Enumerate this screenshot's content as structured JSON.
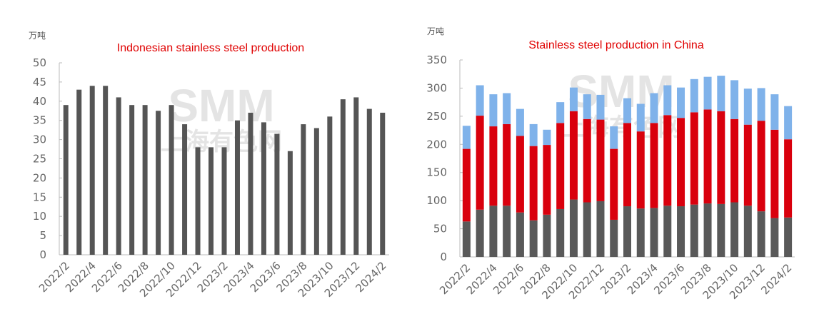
{
  "chart_data": [
    {
      "type": "bar",
      "title": "Indonesian stainless steel production",
      "ylabel": "万吨",
      "ylim": [
        0,
        50
      ],
      "yticks": [
        0,
        5,
        10,
        15,
        20,
        25,
        30,
        35,
        40,
        45,
        50
      ],
      "categories": [
        "2022/2",
        "2022/3",
        "2022/4",
        "2022/5",
        "2022/6",
        "2022/7",
        "2022/8",
        "2022/9",
        "2022/10",
        "2022/11",
        "2022/12",
        "2023/1",
        "2023/2",
        "2023/3",
        "2023/4",
        "2023/5",
        "2023/6",
        "2023/7",
        "2023/8",
        "2023/9",
        "2023/10",
        "2023/11",
        "2023/12",
        "2024/1",
        "2024/2"
      ],
      "xtick_labels": [
        "2022/2",
        "2022/4",
        "2022/6",
        "2022/8",
        "2022/10",
        "2022/12",
        "2023/2",
        "2023/4",
        "2023/6",
        "2023/8",
        "2023/10",
        "2023/12",
        "2024/2"
      ],
      "values": [
        39,
        43,
        44,
        44,
        41,
        39,
        39,
        37.5,
        39,
        34,
        28,
        28,
        28,
        35,
        37,
        34.5,
        31.5,
        27,
        34,
        33,
        36,
        40.5,
        41,
        38,
        37
      ],
      "color": "#555555",
      "grid": false
    },
    {
      "type": "bar",
      "stacked": true,
      "title": "Stainless steel production in China",
      "ylabel": "万吨",
      "ylim": [
        0,
        350
      ],
      "yticks": [
        0,
        50,
        100,
        150,
        200,
        250,
        300,
        350
      ],
      "categories": [
        "2022/2",
        "2022/3",
        "2022/4",
        "2022/5",
        "2022/6",
        "2022/7",
        "2022/8",
        "2022/9",
        "2022/10",
        "2022/11",
        "2022/12",
        "2023/1",
        "2023/2",
        "2023/3",
        "2023/4",
        "2023/5",
        "2023/6",
        "2023/7",
        "2023/8",
        "2023/9",
        "2023/10",
        "2023/11",
        "2023/12",
        "2024/1",
        "2024/2"
      ],
      "xtick_labels": [
        "2022/2",
        "2022/4",
        "2022/6",
        "2022/8",
        "2022/10",
        "2022/12",
        "2023/2",
        "2023/4",
        "2023/6",
        "2023/8",
        "2023/10",
        "2023/12",
        "2024/2"
      ],
      "series": [
        {
          "color": "#595959",
          "values": [
            63,
            84,
            91,
            91,
            79,
            65,
            75,
            85,
            102,
            97,
            99,
            66,
            90,
            86,
            87,
            91,
            90,
            93,
            95,
            94,
            97,
            91,
            81,
            69,
            70
          ]
        },
        {
          "color": "#d9000d",
          "values": [
            129,
            167,
            141,
            145,
            136,
            132,
            124,
            153,
            157,
            148,
            145,
            126,
            148,
            137,
            151,
            161,
            157,
            164,
            167,
            165,
            148,
            144,
            161,
            157,
            139
          ]
        },
        {
          "color": "#7fb2ea",
          "values": [
            41,
            54,
            57,
            55,
            48,
            39,
            27,
            37,
            42,
            44,
            44,
            40,
            44,
            49,
            53,
            53,
            54,
            59,
            58,
            63,
            69,
            64,
            58,
            63,
            59
          ]
        }
      ],
      "totals": [
        233,
        305,
        289,
        291,
        263,
        236,
        226,
        275,
        301,
        289,
        288,
        232,
        282,
        272,
        291,
        305,
        301,
        316,
        320,
        322,
        314,
        299,
        300,
        289,
        268
      ],
      "grid": false
    }
  ],
  "watermark": {
    "text": "SMM",
    "subtext": "上海有色网"
  }
}
